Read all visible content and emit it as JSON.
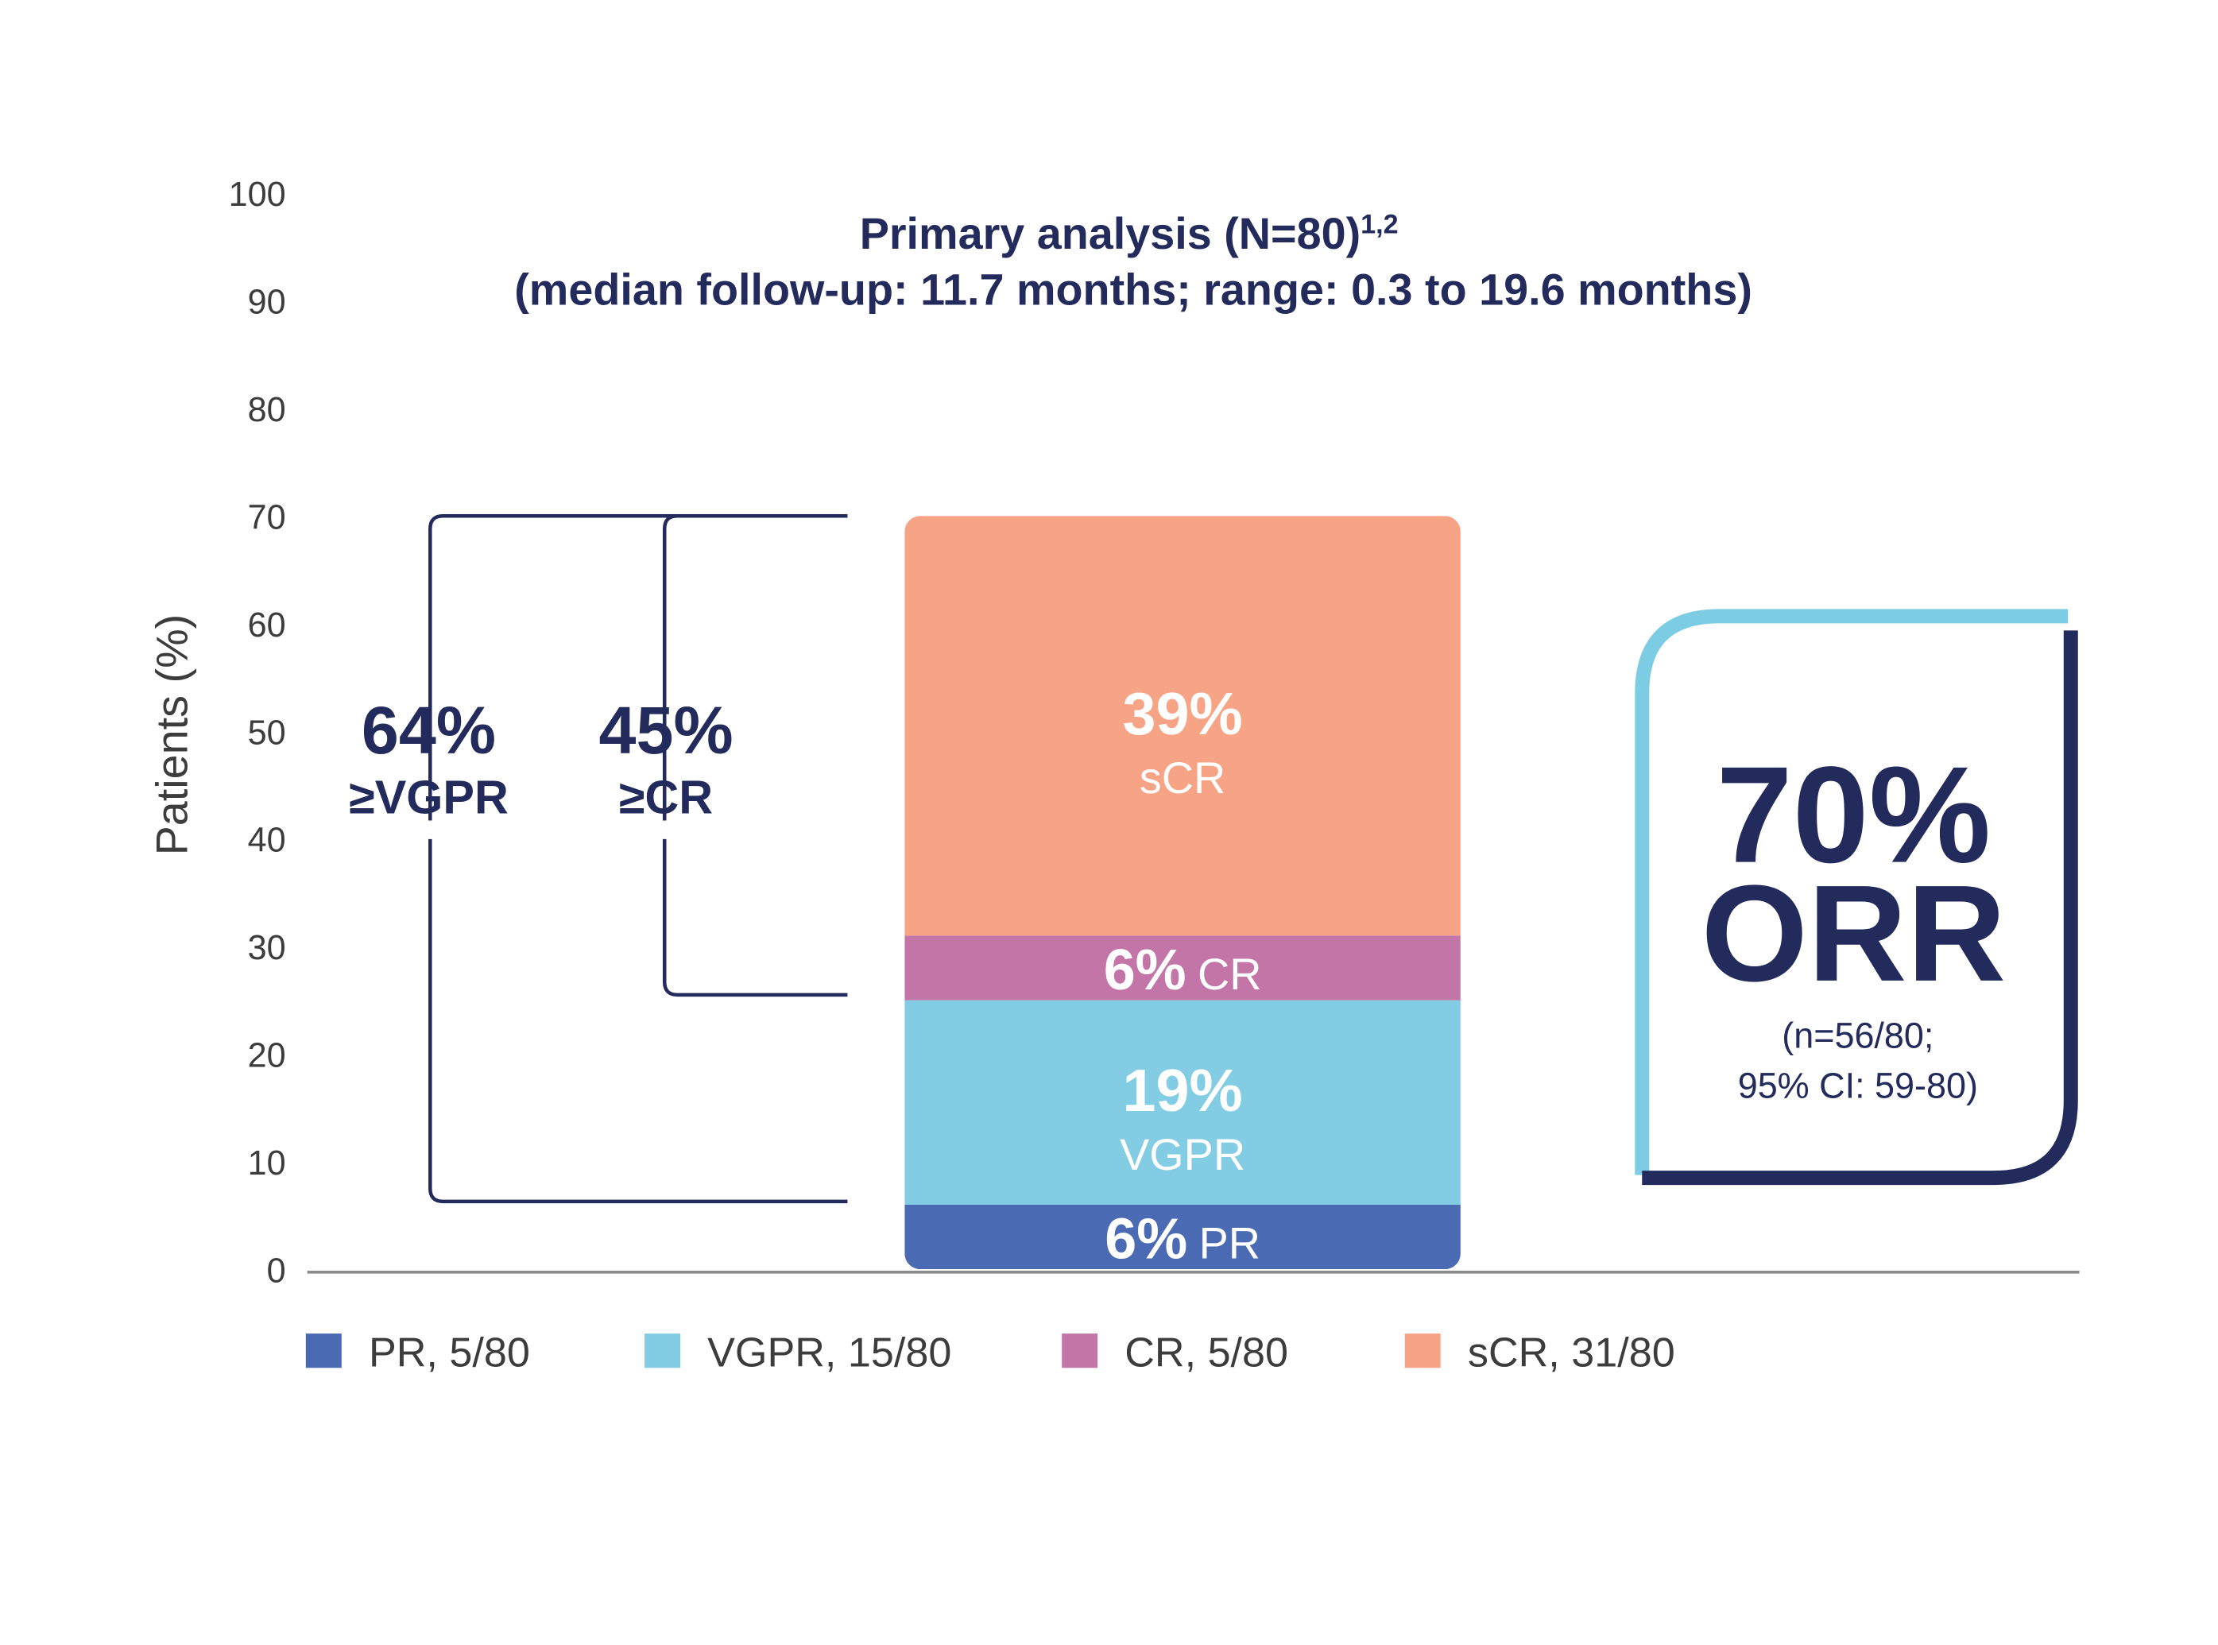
{
  "chart_data": {
    "type": "bar",
    "title_line1": "Primary analysis (N=80)",
    "title_sup": "1,2",
    "title_line2": "(median follow-up: 11.7 months; range: 0.3 to 19.6 months)",
    "ylabel": "Patients (%)",
    "ylim": [
      0,
      100
    ],
    "yticks": [
      "0",
      "10",
      "20",
      "30",
      "40",
      "50",
      "60",
      "70",
      "80",
      "90",
      "100"
    ],
    "stacked": true,
    "series": [
      {
        "name": "PR",
        "value": 6,
        "pct_label": "6%",
        "cat_label": "PR",
        "legend": "PR, 5/80",
        "color": "#4a6bb3",
        "inline": true
      },
      {
        "name": "VGPR",
        "value": 19,
        "pct_label": "19%",
        "cat_label": "VGPR",
        "legend": "VGPR, 15/80",
        "color": "#82cde4",
        "inline": false
      },
      {
        "name": "CR",
        "value": 6,
        "pct_label": "6%",
        "cat_label": "CR",
        "legend": "CR, 5/80",
        "color": "#c375a8",
        "inline": true
      },
      {
        "name": "sCR",
        "value": 39,
        "pct_label": "39%",
        "cat_label": "sCR",
        "legend": "sCR, 31/80",
        "color": "#f7a486",
        "inline": false
      }
    ],
    "brackets": [
      {
        "pct": "64%",
        "label": "≥VGPR",
        "from": 6.3,
        "to": 70
      },
      {
        "pct": "45%",
        "label": "≥CR",
        "from": 25.5,
        "to": 70
      }
    ],
    "callout": {
      "big1": "70%",
      "big2": "ORR",
      "small1": "(n=56/80;",
      "small2": "95% CI: 59-80)"
    },
    "colors": {
      "text": "#222b5c",
      "axis_text": "#3c3c3c",
      "axis_line": "#8c8c8c",
      "box_light": "#7ccde4",
      "box_dark": "#222b5c"
    }
  }
}
